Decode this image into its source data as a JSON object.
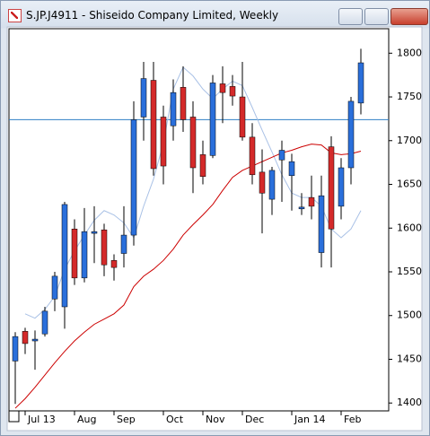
{
  "chart_data": {
    "type": "candlestick",
    "title": "S.JP.J4911 - Shiseido Company Limited, Weekly",
    "categories": [
      null,
      "Jul 13",
      null,
      null,
      null,
      null,
      "Aug",
      null,
      null,
      null,
      "Sep",
      null,
      null,
      null,
      null,
      "Oct",
      null,
      null,
      null,
      "Nov",
      null,
      null,
      null,
      "Dec",
      null,
      null,
      null,
      null,
      "Jan 14",
      null,
      null,
      null,
      null,
      "Feb",
      null,
      null
    ],
    "open": [
      1448,
      1482,
      1471,
      1479,
      1519,
      1510,
      1599,
      1543,
      1594,
      1598,
      1563,
      1571,
      1592,
      1727,
      1769,
      1727,
      1717,
      1761,
      1727,
      1684,
      1683,
      1765,
      1762,
      1750,
      1704,
      1664,
      1633,
      1678,
      1660,
      1622,
      1635,
      1572,
      1693,
      1625,
      1669,
      1743
    ],
    "high": [
      1481,
      1486,
      1483,
      1510,
      1550,
      1630,
      1610,
      1623,
      1625,
      1605,
      1570,
      1625,
      1745,
      1790,
      1790,
      1740,
      1770,
      1785,
      1745,
      1700,
      1775,
      1785,
      1775,
      1790,
      1720,
      1690,
      1670,
      1700,
      1685,
      1640,
      1660,
      1660,
      1705,
      1680,
      1750,
      1805
    ],
    "low": [
      1399,
      1456,
      1438,
      1476,
      1505,
      1485,
      1535,
      1538,
      1560,
      1545,
      1540,
      1555,
      1580,
      1700,
      1660,
      1650,
      1700,
      1710,
      1640,
      1650,
      1680,
      1720,
      1740,
      1700,
      1650,
      1594,
      1615,
      1630,
      1620,
      1615,
      1610,
      1555,
      1555,
      1610,
      1650,
      1730
    ],
    "close": [
      1476,
      1468,
      1473,
      1505,
      1545,
      1627,
      1543,
      1596,
      1596,
      1558,
      1555,
      1592,
      1724,
      1771,
      1668,
      1671,
      1755,
      1724,
      1669,
      1659,
      1766,
      1755,
      1751,
      1704,
      1661,
      1640,
      1666,
      1689,
      1676,
      1624,
      1625,
      1637,
      1599,
      1669,
      1745,
      1789
    ],
    "up_color": "#2a6fdb",
    "down_color": "#d42a2a",
    "overlays": [
      {
        "color": "#a9c1e6",
        "values": [
          null,
          1502,
          1497,
          1507,
          1522,
          1553,
          1574,
          1592,
          1609,
          1620,
          1615,
          1606,
          1589,
          1625,
          1656,
          1697,
          1759,
          1784,
          1774,
          1759,
          1748,
          1759,
          1768,
          1763,
          1738,
          1712,
          1687,
          1661,
          1640,
          1635,
          1635,
          1625,
          1599,
          1589,
          1599,
          1620
        ]
      },
      {
        "color": "#cc0000",
        "values": [
          1394,
          1405,
          1418,
          1432,
          1446,
          1459,
          1471,
          1481,
          1490,
          1496,
          1502,
          1512,
          1533,
          1545,
          1553,
          1563,
          1576,
          1592,
          1604,
          1615,
          1627,
          1643,
          1658,
          1666,
          1671,
          1676,
          1681,
          1686,
          1689,
          1693,
          1696,
          1695,
          1686,
          1684,
          1685,
          1688
        ]
      }
    ],
    "hline": {
      "value": 1724,
      "color": "#2f7fc4"
    },
    "ylim": [
      1391,
      1828
    ],
    "yticks": [
      1400,
      1450,
      1500,
      1550,
      1600,
      1650,
      1700,
      1750,
      1800
    ]
  }
}
